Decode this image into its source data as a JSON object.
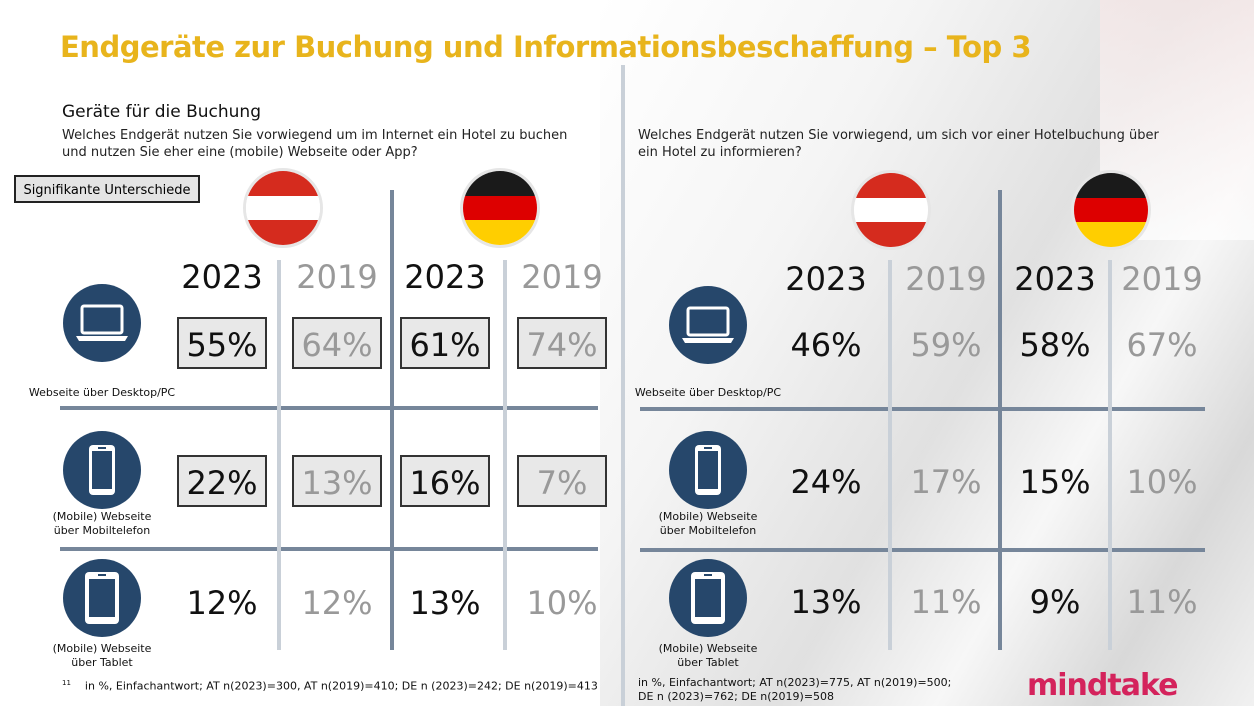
{
  "title": "Endgeräte zur Buchung und Informationsbeschaffung – Top 3",
  "left": {
    "subtitle": "Geräte für die Buchung",
    "question": "Welches Endgerät nutzen Sie vorwiegend um im Internet ein Hotel zu buchen und nutzen Sie eher eine (mobile) Webseite oder App?",
    "badge": "Signifikante Unterschiede",
    "years": [
      "2023",
      "2019",
      "2023",
      "2019"
    ],
    "rows": [
      {
        "label": "Webseite über Desktop/PC",
        "icon": "laptop-icon",
        "values": [
          "55%",
          "64%",
          "61%",
          "74%"
        ],
        "boxed": [
          true,
          true,
          true,
          true
        ]
      },
      {
        "label": "(Mobile) Webseite über Mobiltelefon",
        "icon": "smartphone-icon",
        "values": [
          "22%",
          "13%",
          "16%",
          "7%"
        ],
        "boxed": [
          true,
          true,
          true,
          true
        ]
      },
      {
        "label": "(Mobile) Webseite über Tablet",
        "icon": "tablet-icon",
        "values": [
          "12%",
          "12%",
          "13%",
          "10%"
        ],
        "boxed": [
          false,
          false,
          false,
          false
        ]
      }
    ],
    "footnote_mark": "11",
    "footnote": "in %, Einfachantwort; AT n(2023)=300, AT n(2019)=410; DE n (2023)=242; DE n(2019)=413"
  },
  "right": {
    "question": "Welches Endgerät nutzen Sie vorwiegend, um sich vor einer Hotelbuchung über ein Hotel zu informieren?",
    "years": [
      "2023",
      "2019",
      "2023",
      "2019"
    ],
    "rows": [
      {
        "label": "Webseite über Desktop/PC",
        "icon": "laptop-icon",
        "values": [
          "46%",
          "59%",
          "58%",
          "67%"
        ]
      },
      {
        "label": "(Mobile) Webseite über Mobiltelefon",
        "icon": "smartphone-icon",
        "values": [
          "24%",
          "17%",
          "15%",
          "10%"
        ]
      },
      {
        "label": "(Mobile) Webseite über Tablet",
        "icon": "tablet-icon",
        "values": [
          "13%",
          "11%",
          "9%",
          "11%"
        ]
      }
    ],
    "footnote": "in %, Einfachantwort; AT n(2023)=775, AT n(2019)=500; DE n (2023)=762; DE n(2019)=508"
  },
  "flags": {
    "austria": [
      "#d52b1e",
      "#ffffff",
      "#d52b1e"
    ],
    "germany": [
      "#1a1a1a",
      "#dd0000",
      "#ffce00"
    ]
  },
  "colors": {
    "title": "#e8b41c",
    "icon_bg": "#26476b",
    "logo": "#d4235c"
  },
  "logo": "mindtake"
}
